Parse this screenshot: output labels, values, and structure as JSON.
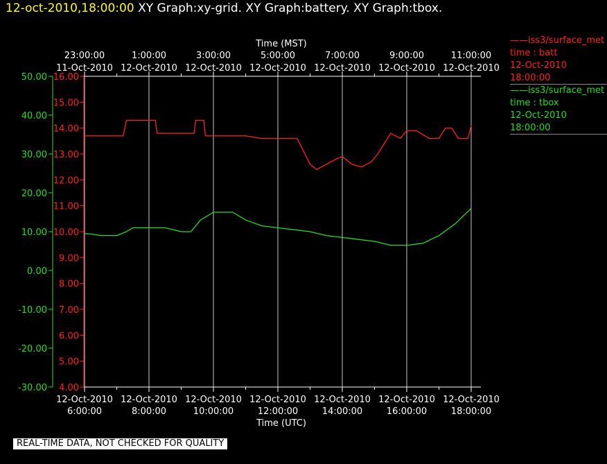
{
  "header": {
    "timestamp": "12-oct-2010,18:00:00",
    "graphs": "XY Graph:xy-grid.  XY Graph:battery.  XY Graph:tbox."
  },
  "legend": [
    {
      "station": "iss3/surface_met",
      "var": "time : batt",
      "date": "12-Oct-2010",
      "time": "18:00:00",
      "color": "#ff2020"
    },
    {
      "station": "iss3/surface_met",
      "var": "time : tbox",
      "date": "12-Oct-2010",
      "time": "18:00:00",
      "color": "#22dd22"
    }
  ],
  "footer": "REAL-TIME DATA, NOT CHECKED FOR QUALITY",
  "chart_data": {
    "type": "line",
    "x_axis_bottom": {
      "label": "Time (UTC)",
      "ticks": [
        {
          "hour": 6,
          "date": "12-Oct-2010",
          "time": "6:00:00"
        },
        {
          "hour": 8,
          "date": "12-Oct-2010",
          "time": "8:00:00"
        },
        {
          "hour": 10,
          "date": "12-Oct-2010",
          "time": "10:00:00"
        },
        {
          "hour": 12,
          "date": "12-Oct-2010",
          "time": "12:00:00"
        },
        {
          "hour": 14,
          "date": "12-Oct-2010",
          "time": "14:00:00"
        },
        {
          "hour": 16,
          "date": "12-Oct-2010",
          "time": "16:00:00"
        },
        {
          "hour": 18,
          "date": "12-Oct-2010",
          "time": "18:00:00"
        }
      ],
      "range": [
        6,
        18
      ]
    },
    "x_axis_top": {
      "label": "Time (MST)",
      "ticks": [
        {
          "hour": 6,
          "time": "23:00:00",
          "date": "11-Oct-2010"
        },
        {
          "hour": 8,
          "time": "1:00:00",
          "date": "12-Oct-2010"
        },
        {
          "hour": 10,
          "time": "3:00:00",
          "date": "12-Oct-2010"
        },
        {
          "hour": 12,
          "time": "5:00:00",
          "date": "12-Oct-2010"
        },
        {
          "hour": 14,
          "time": "7:00:00",
          "date": "12-Oct-2010"
        },
        {
          "hour": 16,
          "time": "9:00:00",
          "date": "12-Oct-2010"
        },
        {
          "hour": 18,
          "time": "11:00:00",
          "date": "12-Oct-2010"
        }
      ]
    },
    "y_axis_left": {
      "series": "tbox",
      "color": "#22dd22",
      "range": [
        -30,
        50
      ],
      "ticks": [
        "-30.00",
        "-20.00",
        "-10.00",
        "0.00",
        "10.00",
        "20.00",
        "30.00",
        "40.00",
        "50.00"
      ]
    },
    "y_axis_right_inner": {
      "series": "batt",
      "color": "#ff2020",
      "range": [
        4,
        16
      ],
      "ticks": [
        "4.00",
        "5.00",
        "6.00",
        "7.00",
        "8.00",
        "9.00",
        "10.00",
        "11.00",
        "12.00",
        "13.00",
        "14.00",
        "15.00",
        "16.00"
      ]
    },
    "grid": "vertical only",
    "series": [
      {
        "name": "batt",
        "axis": "right",
        "color": "#ff2020",
        "x": [
          6.0,
          7.2,
          7.3,
          8.2,
          8.25,
          9.0,
          9.4,
          9.45,
          9.7,
          9.75,
          10.5,
          11.0,
          11.5,
          11.9,
          12.4,
          12.6,
          12.8,
          13.0,
          13.2,
          13.5,
          13.8,
          14.0,
          14.3,
          14.6,
          14.9,
          15.1,
          15.3,
          15.5,
          15.8,
          16.0,
          16.3,
          16.7,
          17.0,
          17.2,
          17.4,
          17.6,
          17.9,
          18.0
        ],
        "y": [
          13.7,
          13.7,
          14.3,
          14.3,
          13.8,
          13.8,
          13.8,
          14.3,
          14.3,
          13.7,
          13.7,
          13.7,
          13.6,
          13.6,
          13.6,
          13.6,
          13.1,
          12.6,
          12.4,
          12.6,
          12.8,
          12.9,
          12.6,
          12.5,
          12.7,
          13.0,
          13.4,
          13.8,
          13.6,
          13.9,
          13.9,
          13.6,
          13.6,
          14.0,
          14.0,
          13.6,
          13.6,
          14.1
        ]
      },
      {
        "name": "tbox",
        "axis": "left",
        "color": "#22dd22",
        "x": [
          6.0,
          6.2,
          6.5,
          6.8,
          7.0,
          7.3,
          7.5,
          8.0,
          8.5,
          9.0,
          9.3,
          9.6,
          10.0,
          10.3,
          10.6,
          11.0,
          11.5,
          12.0,
          12.5,
          13.0,
          13.5,
          14.0,
          14.5,
          15.0,
          15.5,
          16.0,
          16.5,
          17.0,
          17.5,
          18.0
        ],
        "y": [
          9.5,
          9.4,
          9.0,
          9.0,
          9.0,
          10.0,
          11.0,
          11.0,
          11.0,
          10.0,
          10.0,
          13.0,
          15.0,
          15.0,
          15.0,
          13.0,
          11.5,
          11.0,
          10.5,
          10.0,
          9.0,
          8.5,
          8.0,
          7.5,
          6.5,
          6.5,
          7.0,
          9.0,
          12.0,
          16.0
        ]
      }
    ]
  }
}
